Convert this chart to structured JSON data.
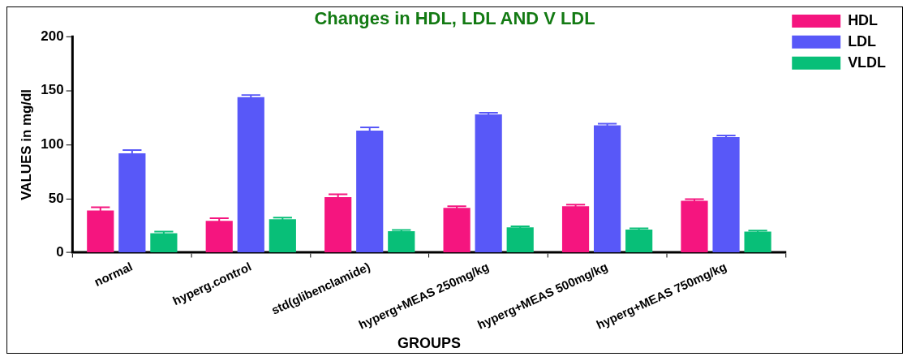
{
  "chart_data": {
    "type": "bar",
    "title": "Changes in HDL, LDL AND V LDL",
    "xlabel": "GROUPS",
    "ylabel": "VALUES in mg/dl",
    "categories": [
      "normal",
      "hyperg.control",
      "std(glibenclamide)",
      "hyperg+MEAS 250mg/kg",
      "hyperg+MEAS 500mg/kg",
      "hyperg+MEAS 750mg/kg"
    ],
    "series": [
      {
        "name": "HDL",
        "color": "#f5157f",
        "values": [
          39,
          29.5,
          51.5,
          41.5,
          43,
          48
        ],
        "errors": [
          3,
          2.5,
          2.5,
          1.5,
          1.5,
          1.5
        ]
      },
      {
        "name": "LDL",
        "color": "#5858f8",
        "values": [
          92,
          144,
          113,
          128,
          118,
          107
        ],
        "errors": [
          3,
          2,
          3,
          1.5,
          1.5,
          1.5
        ]
      },
      {
        "name": "VLDL",
        "color": "#08bf78",
        "values": [
          18,
          31,
          20,
          23.5,
          21.5,
          19.5
        ],
        "errors": [
          1.5,
          1.5,
          1,
          1,
          1,
          1
        ]
      }
    ],
    "ylim": [
      0,
      200
    ],
    "yticks": [
      0,
      50,
      100,
      150,
      200
    ],
    "grid": false,
    "legend": "top right"
  }
}
